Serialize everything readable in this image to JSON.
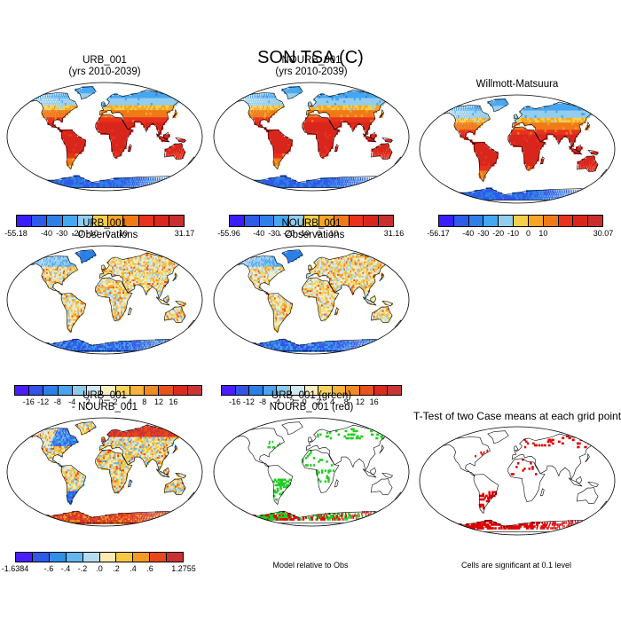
{
  "title": "SON TSA (C)",
  "panels": [
    {
      "id": "p1",
      "title_lines": [
        "URB_001",
        "(yrs 2010-2039)"
      ],
      "kind": "abs",
      "colorbar": {
        "ticks": [
          "-55.18",
          "-40",
          "-30",
          "-20",
          "-10",
          "0",
          "10",
          "31.17"
        ]
      }
    },
    {
      "id": "p2",
      "title_lines": [
        "NOURB_001",
        "(yrs 2010-2039)"
      ],
      "kind": "abs",
      "colorbar": {
        "ticks": [
          "-55.96",
          "-40",
          "-30",
          "-20",
          "-10",
          "0",
          "10",
          "31.16"
        ]
      }
    },
    {
      "id": "p3",
      "title_lines": [
        "Willmott-Matsuura"
      ],
      "kind": "abs",
      "colorbar": {
        "ticks": [
          "-56.17",
          "-40",
          "-30",
          "-20",
          "-10",
          "0",
          "10",
          "30.07"
        ]
      }
    },
    {
      "id": "p4",
      "title_lines": [
        "URB_001",
        "- Observations"
      ],
      "kind": "diff",
      "colorbar": {
        "ticks": [
          "-16",
          "-12",
          "-8",
          "-4",
          "-2",
          "0",
          "2",
          "4",
          "8",
          "12",
          "16"
        ]
      }
    },
    {
      "id": "p5",
      "title_lines": [
        "NOURB_001",
        "- Observations"
      ],
      "kind": "diff",
      "colorbar": {
        "ticks": [
          "-16",
          "-12",
          "-8",
          "-4",
          "-2",
          "0",
          "2",
          "4",
          "8",
          "12",
          "16"
        ]
      }
    },
    {
      "id": "p6",
      "title_lines": [
        "URB_001",
        "- NOURB_001"
      ],
      "kind": "diff2",
      "colorbar": {
        "ticks": [
          "-1.6384",
          "-.6",
          "-.4",
          "-.2",
          ".0",
          ".2",
          ".4",
          ".6",
          "1.2755"
        ]
      }
    },
    {
      "id": "p7",
      "title_lines": [
        "URB_001 (green)",
        "NOURB_001 (red)"
      ],
      "kind": "sig2",
      "note": "Model relative to Obs"
    },
    {
      "id": "p8",
      "title_lines": [
        "T-Test of two Case means at each grid point"
      ],
      "kind": "sig",
      "note": "Cells are significant at 0.1 level"
    }
  ],
  "palettes": {
    "abs": [
      "#3a1dff",
      "#2e5ae8",
      "#2f7fe8",
      "#46a6f0",
      "#93cdee",
      "#f6cf4a",
      "#f5a623",
      "#f07a18",
      "#e8321e",
      "#d9261c",
      "#c92e2e"
    ],
    "diff": [
      "#4a1dff",
      "#3352e6",
      "#2b7fe6",
      "#4aa3ef",
      "#8fc9ec",
      "#cfe8f2",
      "#fbeec0",
      "#f7d35c",
      "#f6b23a",
      "#f08a22",
      "#e8521b",
      "#db2a1e",
      "#c93434"
    ],
    "diff2": [
      "#4a1dff",
      "#2e5ae8",
      "#2f8fe8",
      "#63b6f0",
      "#b6dcef",
      "#fbeab2",
      "#f6c840",
      "#f29a22",
      "#e8481c",
      "#c93232"
    ]
  },
  "colors": {
    "significant": "#e00000",
    "green_sig": "#22cc22",
    "land_outline": "#000000"
  }
}
